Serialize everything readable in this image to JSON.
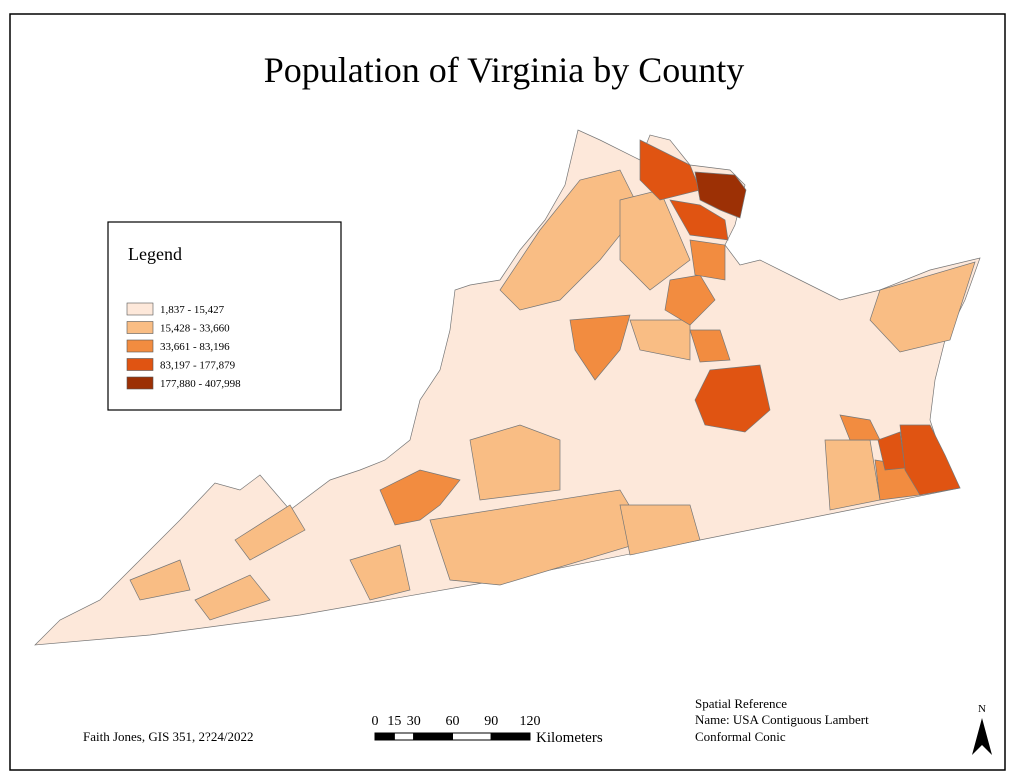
{
  "title": "Population of Virginia by County",
  "legend": {
    "title": "Legend",
    "classes": [
      {
        "label": "1,837 - 15,427",
        "color": "#fde8da"
      },
      {
        "label": "15,428 - 33,660",
        "color": "#f9bd84"
      },
      {
        "label": "33,661 - 83,196",
        "color": "#f28c40"
      },
      {
        "label": "83,197 - 177,879",
        "color": "#e05412"
      },
      {
        "label": "177,880 - 407,998",
        "color": "#9c3005"
      }
    ]
  },
  "scale_bar": {
    "ticks": [
      0,
      15,
      30,
      60,
      90,
      120
    ],
    "unit": "Kilometers"
  },
  "credit": "Faith Jones, GIS 351, 2?24/2022",
  "spatial_reference": [
    "Spatial Reference",
    "Name: USA Contiguous Lambert",
    "Conformal Conic"
  ],
  "north": "N"
}
